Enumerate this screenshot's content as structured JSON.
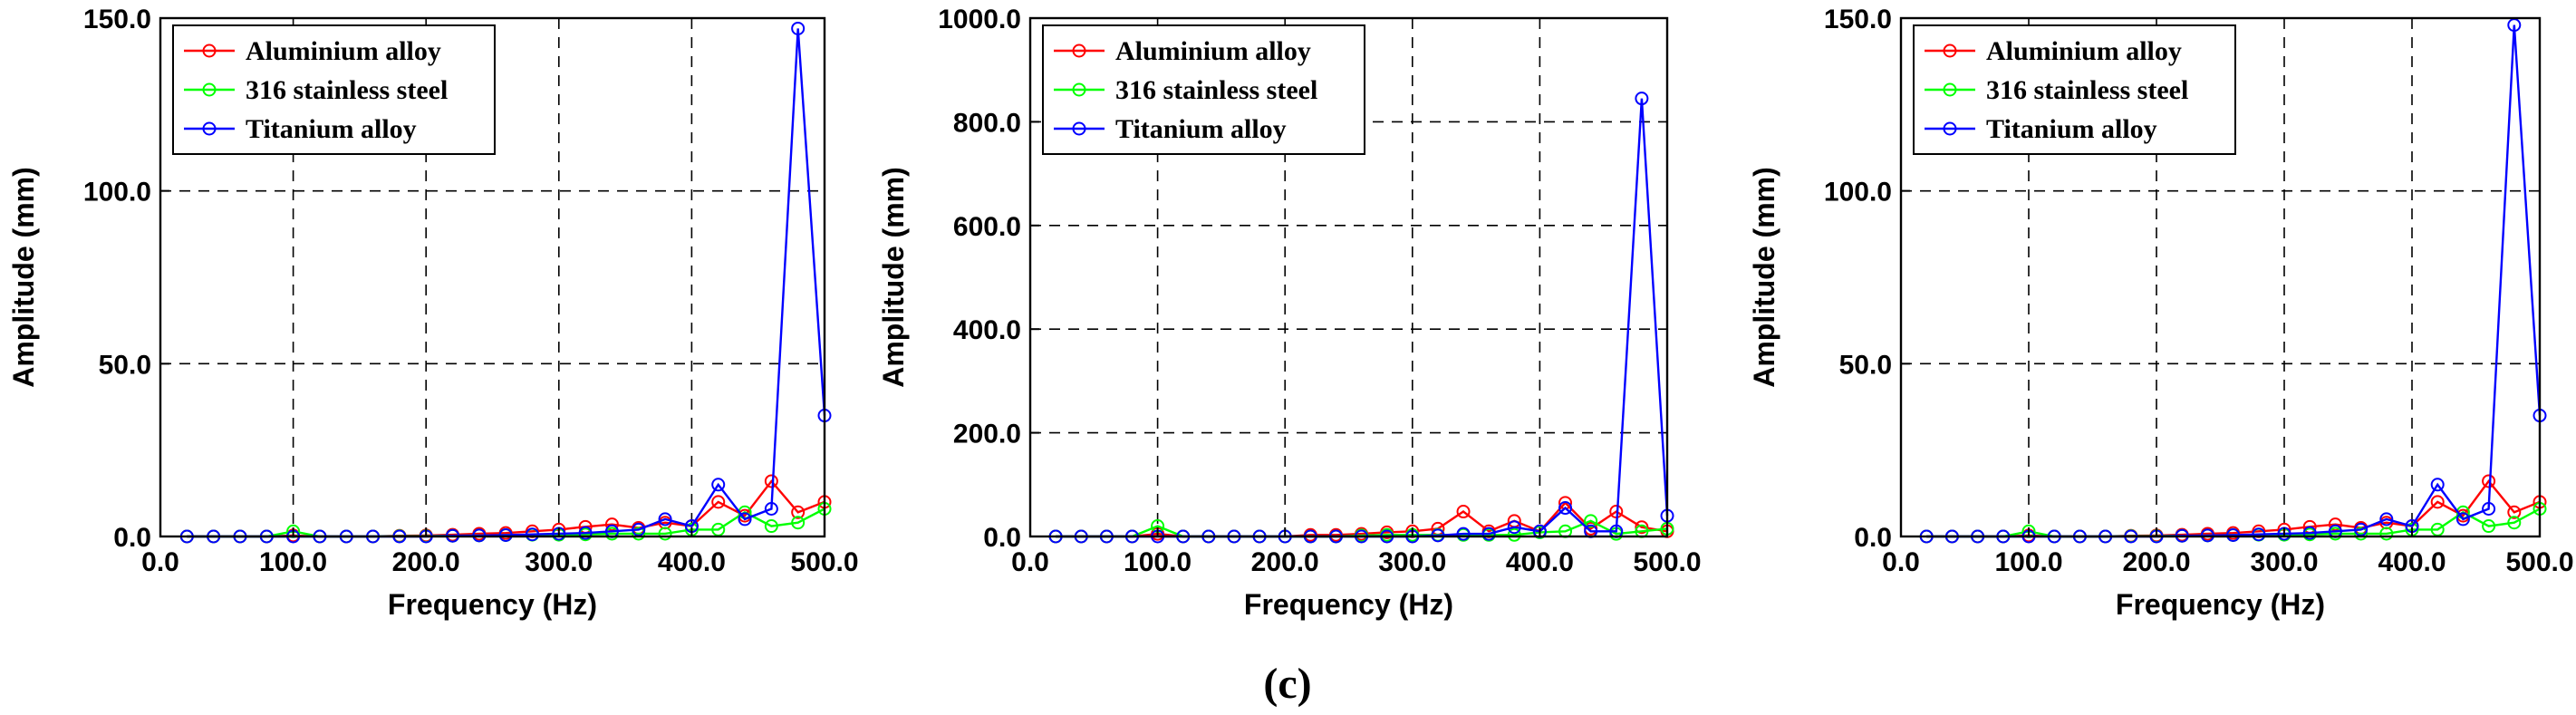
{
  "figure": {
    "caption": "(c)"
  },
  "chart_data": [
    {
      "type": "line",
      "xlabel": "Frequency (Hz)",
      "ylabel": "Amplitude (mm)",
      "xlim": [
        0,
        500
      ],
      "ylim": [
        0,
        150
      ],
      "xticks": [
        0,
        100,
        200,
        300,
        400,
        500
      ],
      "xtick_labels": [
        "0.0",
        "100.0",
        "200.0",
        "300.0",
        "400.0",
        "500.0"
      ],
      "yticks": [
        0,
        50,
        100,
        150
      ],
      "ytick_labels": [
        "0.0",
        "50.0",
        "100.0",
        "150.0"
      ],
      "grid": true,
      "legend_position": "top-left",
      "x": [
        20,
        40,
        60,
        80,
        100,
        120,
        140,
        160,
        180,
        200,
        220,
        240,
        260,
        280,
        300,
        320,
        340,
        360,
        380,
        400,
        420,
        440,
        460,
        480,
        500
      ],
      "series": [
        {
          "name": "Aluminium alloy",
          "color": "#ff0000",
          "values": [
            0,
            0,
            0,
            0,
            0.3,
            0,
            0,
            0,
            0.2,
            0.3,
            0.5,
            0.8,
            1.0,
            1.5,
            2.0,
            2.8,
            3.5,
            2.5,
            4.0,
            3.0,
            10,
            6,
            16,
            7,
            10
          ]
        },
        {
          "name": "316 stainless steel",
          "color": "#00ff00",
          "values": [
            0,
            0,
            0,
            0,
            1.5,
            0,
            0,
            0,
            0.1,
            0.1,
            0.2,
            0.3,
            0.4,
            0.5,
            0.5,
            0.6,
            0.8,
            0.8,
            0.8,
            2.0,
            2.0,
            7.0,
            3.0,
            4.0,
            8.0
          ]
        },
        {
          "name": "Titanium alloy",
          "color": "#0000ff",
          "values": [
            0,
            0,
            0,
            0,
            0,
            0,
            0,
            0,
            0,
            0,
            0.2,
            0.3,
            0.4,
            0.6,
            0.8,
            1.0,
            1.5,
            2.0,
            5.0,
            3.0,
            15,
            5,
            8,
            147,
            35
          ]
        }
      ]
    },
    {
      "type": "line",
      "xlabel": "Frequency (Hz)",
      "ylabel": "Amplitude (mm)",
      "xlim": [
        0,
        500
      ],
      "ylim": [
        0,
        1000
      ],
      "xticks": [
        0,
        100,
        200,
        300,
        400,
        500
      ],
      "xtick_labels": [
        "0.0",
        "100.0",
        "200.0",
        "300.0",
        "400.0",
        "500.0"
      ],
      "yticks": [
        0,
        200,
        400,
        600,
        800,
        1000
      ],
      "ytick_labels": [
        "0.0",
        "200.0",
        "400.0",
        "600.0",
        "800.0",
        "1000.0"
      ],
      "grid": true,
      "legend_position": "top-left",
      "x": [
        20,
        40,
        60,
        80,
        100,
        120,
        140,
        160,
        180,
        200,
        220,
        240,
        260,
        280,
        300,
        320,
        340,
        360,
        380,
        400,
        420,
        440,
        460,
        480,
        500
      ],
      "series": [
        {
          "name": "Aluminium alloy",
          "color": "#ff0000",
          "values": [
            0,
            0,
            0,
            0,
            5,
            0,
            0,
            0,
            0,
            0,
            3,
            3,
            5,
            8,
            10,
            15,
            48,
            10,
            30,
            10,
            65,
            15,
            48,
            18,
            10
          ]
        },
        {
          "name": "316 stainless steel",
          "color": "#00ff00",
          "values": [
            0,
            0,
            0,
            0,
            20,
            0,
            0,
            0,
            0,
            0,
            0,
            0,
            2,
            3,
            3,
            3,
            3,
            3,
            3,
            8,
            10,
            30,
            5,
            10,
            15
          ]
        },
        {
          "name": "Titanium alloy",
          "color": "#0000ff",
          "values": [
            0,
            0,
            0,
            0,
            0,
            0,
            0,
            0,
            0,
            0,
            0,
            0,
            0,
            0,
            0,
            2,
            5,
            5,
            18,
            10,
            55,
            10,
            10,
            845,
            40
          ]
        }
      ]
    },
    {
      "type": "line",
      "xlabel": "Frequency (Hz)",
      "ylabel": "Amplitude (mm)",
      "xlim": [
        0,
        500
      ],
      "ylim": [
        0,
        150
      ],
      "xticks": [
        0,
        100,
        200,
        300,
        400,
        500
      ],
      "xtick_labels": [
        "0.0",
        "100.0",
        "200.0",
        "300.0",
        "400.0",
        "500.0"
      ],
      "yticks": [
        0,
        50,
        100,
        150
      ],
      "ytick_labels": [
        "0.0",
        "50.0",
        "100.0",
        "150.0"
      ],
      "grid": true,
      "legend_position": "top-left",
      "x": [
        20,
        40,
        60,
        80,
        100,
        120,
        140,
        160,
        180,
        200,
        220,
        240,
        260,
        280,
        300,
        320,
        340,
        360,
        380,
        400,
        420,
        440,
        460,
        480,
        500
      ],
      "series": [
        {
          "name": "Aluminium alloy",
          "color": "#ff0000",
          "values": [
            0,
            0,
            0,
            0,
            0.3,
            0,
            0,
            0,
            0.2,
            0.3,
            0.5,
            0.8,
            1.0,
            1.5,
            2.0,
            2.8,
            3.5,
            2.5,
            4.0,
            3.0,
            10,
            6,
            16,
            7,
            10
          ]
        },
        {
          "name": "316 stainless steel",
          "color": "#00ff00",
          "values": [
            0,
            0,
            0,
            0,
            1.5,
            0,
            0,
            0,
            0.1,
            0.1,
            0.2,
            0.3,
            0.4,
            0.5,
            0.5,
            0.6,
            0.8,
            0.8,
            0.8,
            2.0,
            2.0,
            7.0,
            3.0,
            4.0,
            8.0
          ]
        },
        {
          "name": "Titanium alloy",
          "color": "#0000ff",
          "values": [
            0,
            0,
            0,
            0,
            0,
            0,
            0,
            0,
            0,
            0,
            0.2,
            0.3,
            0.4,
            0.6,
            0.8,
            1.0,
            1.5,
            2.0,
            5.0,
            3.0,
            15,
            5,
            8,
            148,
            35
          ]
        }
      ]
    }
  ]
}
